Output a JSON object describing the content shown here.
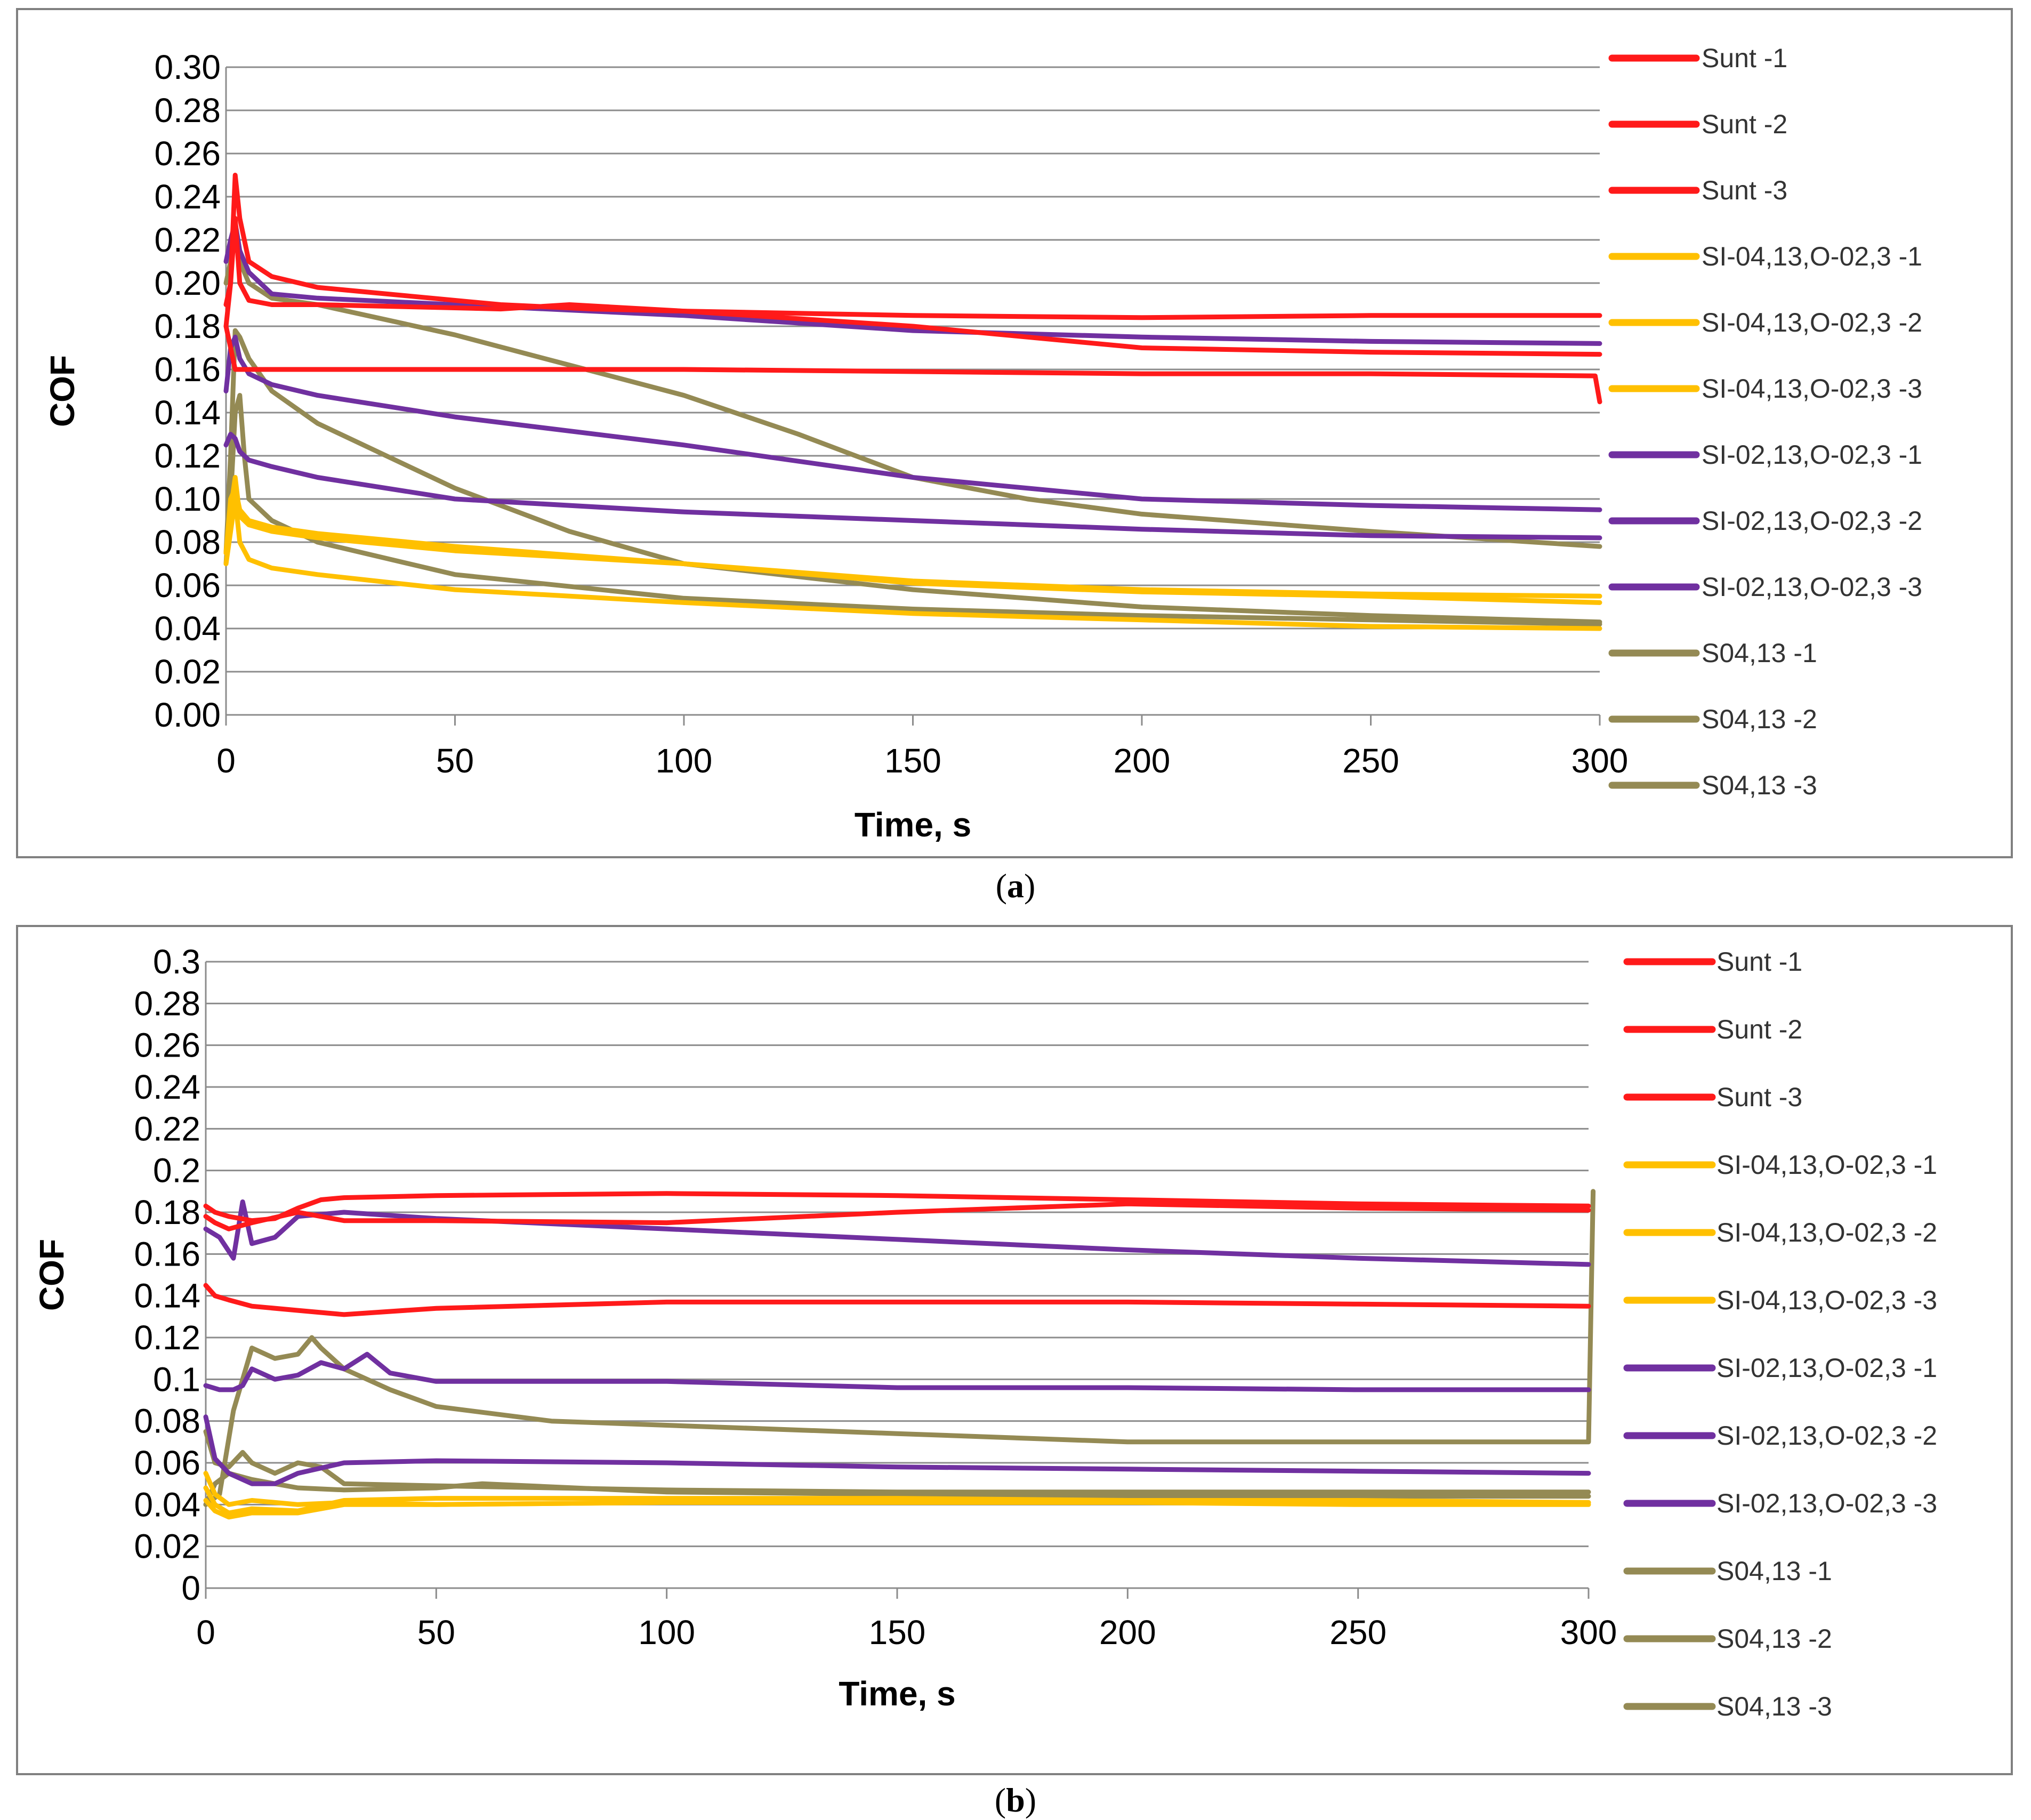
{
  "chart_data": [
    {
      "type": "line",
      "panel": "a",
      "caption": "a",
      "xlabel": "Time, s",
      "ylabel": "COF",
      "xlim": [
        0,
        300
      ],
      "ylim": [
        0,
        0.3
      ],
      "x_ticks": [
        "0",
        "50",
        "100",
        "150",
        "200",
        "250",
        "300"
      ],
      "y_ticks": [
        "0.00",
        "0.02",
        "0.04",
        "0.06",
        "0.08",
        "0.10",
        "0.12",
        "0.14",
        "0.16",
        "0.18",
        "0.20",
        "0.22",
        "0.24",
        "0.26",
        "0.28",
        "0.30"
      ],
      "grid": "horizontal",
      "legend_position": "right",
      "series": [
        {
          "name": "Sunt -1",
          "color": "#ff1a1a",
          "x": [
            0,
            1,
            2,
            3,
            5,
            10,
            20,
            40,
            60,
            80,
            100,
            150,
            200,
            250,
            300
          ],
          "y": [
            0.19,
            0.2,
            0.25,
            0.23,
            0.21,
            0.203,
            0.198,
            0.194,
            0.19,
            0.188,
            0.187,
            0.185,
            0.184,
            0.185,
            0.185
          ]
        },
        {
          "name": "Sunt -2",
          "color": "#ff1a1a",
          "x": [
            0,
            1,
            2,
            3,
            5,
            10,
            20,
            40,
            60,
            75,
            100,
            150,
            200,
            250,
            300
          ],
          "y": [
            0.18,
            0.2,
            0.23,
            0.2,
            0.192,
            0.19,
            0.19,
            0.189,
            0.188,
            0.19,
            0.187,
            0.18,
            0.17,
            0.168,
            0.167
          ]
        },
        {
          "name": "Sunt -3",
          "color": "#ff1a1a",
          "x": [
            0,
            1,
            2,
            3,
            5,
            20,
            50,
            100,
            150,
            200,
            250,
            299,
            300
          ],
          "y": [
            0.18,
            0.17,
            0.16,
            0.16,
            0.16,
            0.16,
            0.16,
            0.16,
            0.159,
            0.158,
            0.158,
            0.157,
            0.145
          ]
        },
        {
          "name": "SI-04,13,O-02,3 -1",
          "color": "#ffc000",
          "x": [
            0,
            1,
            2,
            3,
            5,
            10,
            20,
            50,
            100,
            150,
            200,
            250,
            300
          ],
          "y": [
            0.075,
            0.1,
            0.105,
            0.095,
            0.09,
            0.087,
            0.084,
            0.078,
            0.07,
            0.062,
            0.058,
            0.056,
            0.055
          ]
        },
        {
          "name": "SI-04,13,O-02,3 -2",
          "color": "#ffc000",
          "x": [
            0,
            1,
            2,
            3,
            5,
            10,
            20,
            50,
            100,
            150,
            200,
            250,
            300
          ],
          "y": [
            0.075,
            0.095,
            0.11,
            0.092,
            0.088,
            0.085,
            0.082,
            0.076,
            0.07,
            0.061,
            0.057,
            0.055,
            0.052
          ]
        },
        {
          "name": "SI-04,13,O-02,3 -3",
          "color": "#ffc000",
          "x": [
            0,
            1,
            2,
            3,
            5,
            10,
            20,
            50,
            100,
            150,
            200,
            250,
            300
          ],
          "y": [
            0.07,
            0.085,
            0.1,
            0.08,
            0.072,
            0.068,
            0.065,
            0.058,
            0.052,
            0.047,
            0.044,
            0.041,
            0.04
          ]
        },
        {
          "name": "SI-02,13,O-02,3 -1",
          "color": "#7030a0",
          "x": [
            0,
            1,
            2,
            3,
            5,
            10,
            20,
            50,
            100,
            150,
            200,
            250,
            300
          ],
          "y": [
            0.21,
            0.22,
            0.228,
            0.215,
            0.205,
            0.195,
            0.193,
            0.19,
            0.185,
            0.178,
            0.175,
            0.173,
            0.172
          ]
        },
        {
          "name": "SI-02,13,O-02,3 -2",
          "color": "#7030a0",
          "x": [
            0,
            1,
            2,
            3,
            5,
            10,
            20,
            50,
            100,
            150,
            200,
            250,
            300
          ],
          "y": [
            0.15,
            0.17,
            0.175,
            0.165,
            0.158,
            0.153,
            0.148,
            0.138,
            0.125,
            0.11,
            0.1,
            0.097,
            0.095
          ]
        },
        {
          "name": "SI-02,13,O-02,3 -3",
          "color": "#7030a0",
          "x": [
            0,
            1,
            2,
            3,
            5,
            10,
            20,
            50,
            100,
            150,
            200,
            250,
            300
          ],
          "y": [
            0.125,
            0.13,
            0.128,
            0.122,
            0.118,
            0.115,
            0.11,
            0.1,
            0.094,
            0.09,
            0.086,
            0.083,
            0.082
          ]
        },
        {
          "name": "S04,13 -1",
          "color": "#948a54",
          "x": [
            0,
            1,
            2,
            3,
            5,
            10,
            20,
            50,
            75,
            100,
            125,
            150,
            175,
            200,
            250,
            300
          ],
          "y": [
            0.2,
            0.21,
            0.22,
            0.21,
            0.2,
            0.193,
            0.19,
            0.176,
            0.162,
            0.148,
            0.13,
            0.11,
            0.1,
            0.093,
            0.085,
            0.078
          ]
        },
        {
          "name": "S04,13 -2",
          "color": "#948a54",
          "x": [
            0,
            1,
            2,
            3,
            5,
            10,
            20,
            40,
            50,
            75,
            100,
            150,
            200,
            250,
            300
          ],
          "y": [
            0.075,
            0.12,
            0.178,
            0.175,
            0.165,
            0.15,
            0.135,
            0.115,
            0.105,
            0.085,
            0.07,
            0.058,
            0.05,
            0.046,
            0.043
          ]
        },
        {
          "name": "S04,13 -3",
          "color": "#948a54",
          "x": [
            0,
            1,
            2,
            3,
            4,
            5,
            10,
            20,
            50,
            100,
            150,
            200,
            250,
            300
          ],
          "y": [
            0.07,
            0.1,
            0.14,
            0.148,
            0.12,
            0.1,
            0.09,
            0.08,
            0.065,
            0.054,
            0.049,
            0.046,
            0.044,
            0.042
          ]
        }
      ]
    },
    {
      "type": "line",
      "panel": "b",
      "caption": "b",
      "xlabel": "Time, s",
      "ylabel": "COF",
      "xlim": [
        0,
        300
      ],
      "ylim": [
        0,
        0.3
      ],
      "x_ticks": [
        "0",
        "50",
        "100",
        "150",
        "200",
        "250",
        "300"
      ],
      "y_ticks": [
        "0",
        "0.02",
        "0.04",
        "0.06",
        "0.08",
        "0.1",
        "0.12",
        "0.14",
        "0.16",
        "0.18",
        "0.2",
        "0.22",
        "0.24",
        "0.26",
        "0.28",
        "0.3"
      ],
      "grid": "horizontal",
      "legend_position": "right",
      "series": [
        {
          "name": "Sunt -1",
          "color": "#ff1a1a",
          "x": [
            0,
            2,
            5,
            10,
            15,
            20,
            25,
            30,
            50,
            100,
            150,
            200,
            250,
            300
          ],
          "y": [
            0.183,
            0.18,
            0.178,
            0.176,
            0.177,
            0.182,
            0.186,
            0.187,
            0.188,
            0.189,
            0.188,
            0.186,
            0.184,
            0.183
          ]
        },
        {
          "name": "Sunt -2",
          "color": "#ff1a1a",
          "x": [
            0,
            2,
            5,
            10,
            20,
            30,
            50,
            100,
            150,
            200,
            250,
            300
          ],
          "y": [
            0.178,
            0.175,
            0.172,
            0.175,
            0.18,
            0.176,
            0.176,
            0.175,
            0.18,
            0.184,
            0.182,
            0.181
          ]
        },
        {
          "name": "Sunt -3",
          "color": "#ff1a1a",
          "x": [
            0,
            2,
            5,
            10,
            20,
            30,
            50,
            100,
            150,
            200,
            250,
            300
          ],
          "y": [
            0.145,
            0.14,
            0.138,
            0.135,
            0.133,
            0.131,
            0.134,
            0.137,
            0.137,
            0.137,
            0.136,
            0.135
          ]
        },
        {
          "name": "SI-04,13,O-02,3 -1",
          "color": "#ffc000",
          "x": [
            0,
            2,
            5,
            10,
            20,
            30,
            50,
            100,
            150,
            200,
            250,
            300
          ],
          "y": [
            0.055,
            0.045,
            0.04,
            0.042,
            0.04,
            0.041,
            0.04,
            0.041,
            0.041,
            0.041,
            0.04,
            0.04
          ]
        },
        {
          "name": "SI-04,13,O-02,3 -2",
          "color": "#ffc000",
          "x": [
            0,
            2,
            5,
            10,
            20,
            30,
            50,
            100,
            150,
            200,
            250,
            300
          ],
          "y": [
            0.048,
            0.04,
            0.036,
            0.038,
            0.037,
            0.042,
            0.043,
            0.043,
            0.043,
            0.042,
            0.042,
            0.041
          ]
        },
        {
          "name": "SI-04,13,O-02,3 -3",
          "color": "#ffc000",
          "x": [
            0,
            2,
            5,
            10,
            20,
            30,
            50,
            100,
            150,
            200,
            250,
            300
          ],
          "y": [
            0.042,
            0.037,
            0.034,
            0.036,
            0.036,
            0.04,
            0.04,
            0.041,
            0.041,
            0.041,
            0.041,
            0.041
          ]
        },
        {
          "name": "SI-02,13,O-02,3 -1",
          "color": "#7030a0",
          "x": [
            0,
            3,
            6,
            8,
            10,
            15,
            20,
            30,
            50,
            100,
            150,
            200,
            250,
            300
          ],
          "y": [
            0.172,
            0.168,
            0.158,
            0.185,
            0.165,
            0.168,
            0.178,
            0.18,
            0.177,
            0.172,
            0.167,
            0.162,
            0.158,
            0.155
          ]
        },
        {
          "name": "SI-02,13,O-02,3 -2",
          "color": "#7030a0",
          "x": [
            0,
            3,
            6,
            8,
            10,
            15,
            20,
            25,
            30,
            35,
            40,
            50,
            100,
            150,
            200,
            250,
            300
          ],
          "y": [
            0.097,
            0.095,
            0.095,
            0.097,
            0.105,
            0.1,
            0.102,
            0.108,
            0.105,
            0.112,
            0.103,
            0.099,
            0.099,
            0.096,
            0.096,
            0.095,
            0.095
          ]
        },
        {
          "name": "SI-02,13,O-02,3 -3",
          "color": "#7030a0",
          "x": [
            0,
            2,
            5,
            10,
            15,
            20,
            30,
            50,
            100,
            150,
            200,
            250,
            300
          ],
          "y": [
            0.082,
            0.062,
            0.055,
            0.05,
            0.05,
            0.055,
            0.06,
            0.061,
            0.06,
            0.058,
            0.057,
            0.056,
            0.055
          ]
        },
        {
          "name": "S04,13 -1",
          "color": "#948a54",
          "x": [
            0,
            3,
            6,
            10,
            15,
            20,
            23,
            25,
            30,
            40,
            50,
            75,
            100,
            150,
            200,
            250,
            300,
            301
          ],
          "y": [
            0.04,
            0.045,
            0.085,
            0.115,
            0.11,
            0.112,
            0.12,
            0.115,
            0.105,
            0.095,
            0.087,
            0.08,
            0.078,
            0.074,
            0.07,
            0.07,
            0.07,
            0.19
          ]
        },
        {
          "name": "S04,13 -2",
          "color": "#948a54",
          "x": [
            0,
            2,
            5,
            8,
            10,
            15,
            20,
            25,
            30,
            50,
            100,
            150,
            200,
            250,
            300
          ],
          "y": [
            0.075,
            0.06,
            0.058,
            0.065,
            0.06,
            0.055,
            0.06,
            0.058,
            0.05,
            0.049,
            0.047,
            0.046,
            0.046,
            0.046,
            0.046
          ]
        },
        {
          "name": "S04,13 -3",
          "color": "#948a54",
          "x": [
            0,
            2,
            5,
            10,
            15,
            20,
            30,
            50,
            60,
            100,
            150,
            200,
            250,
            300
          ],
          "y": [
            0.04,
            0.05,
            0.055,
            0.052,
            0.05,
            0.048,
            0.047,
            0.048,
            0.05,
            0.046,
            0.045,
            0.044,
            0.044,
            0.044
          ]
        }
      ]
    }
  ]
}
